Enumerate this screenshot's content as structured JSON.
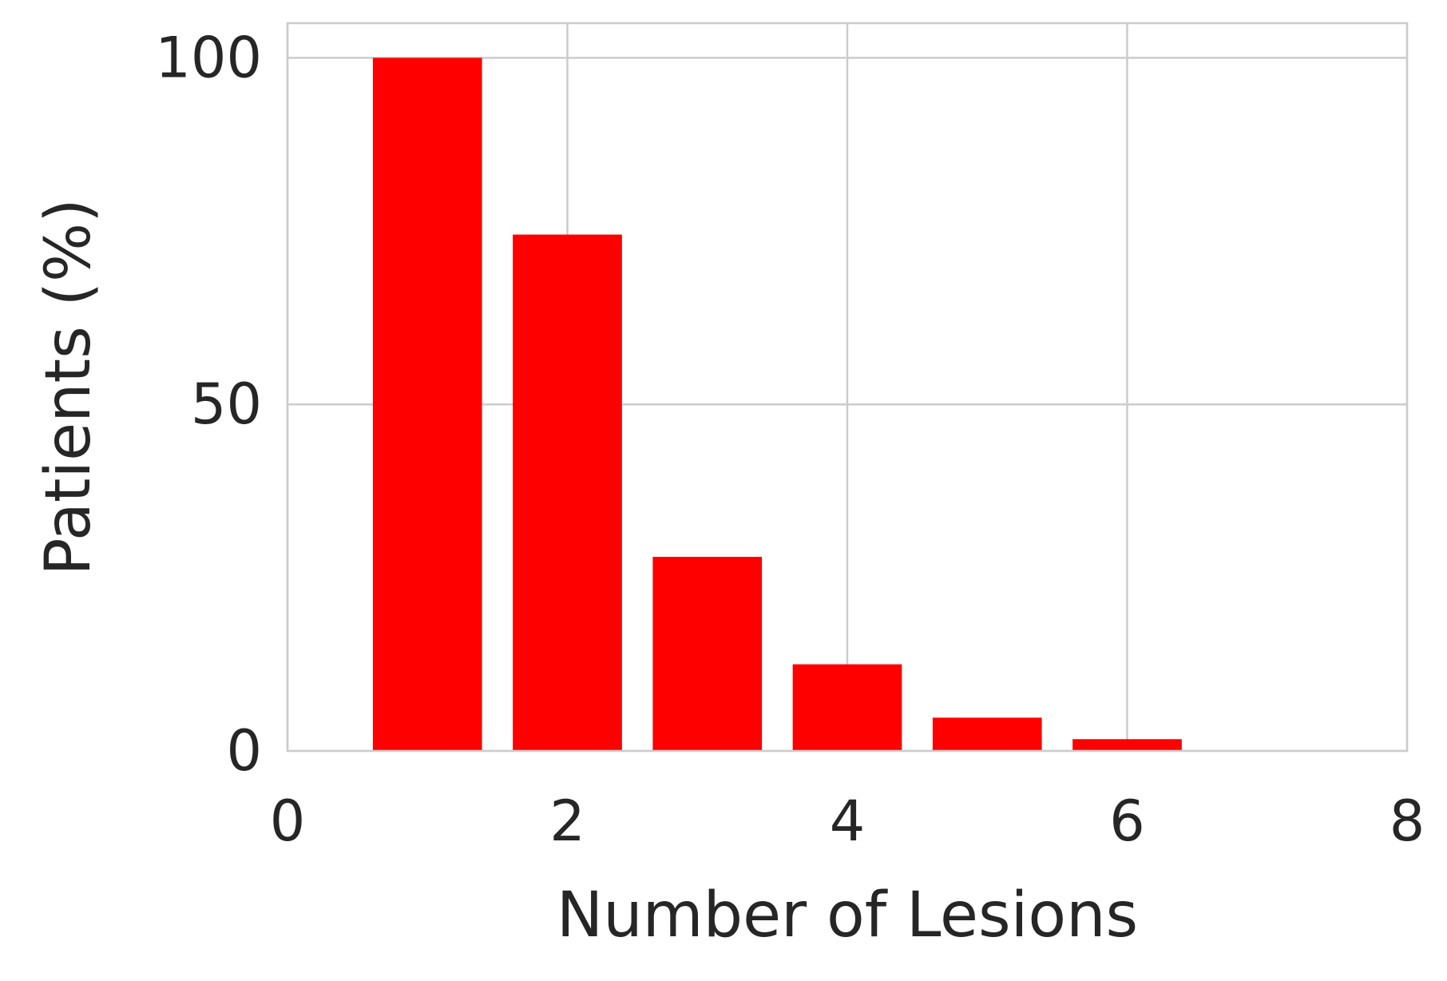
{
  "chart_data": {
    "type": "bar",
    "title": "",
    "xlabel": "Number of Lesions",
    "ylabel": "Patients (%)",
    "xlim": [
      0,
      8
    ],
    "ylim": [
      0,
      105
    ],
    "xticks": [
      0,
      2,
      4,
      6,
      8
    ],
    "yticks": [
      0,
      50,
      100
    ],
    "grid": true,
    "bar_color": "#ff0000",
    "bar_width": 0.78,
    "x": [
      1,
      2,
      3,
      4,
      5,
      6
    ],
    "values": [
      100,
      74.5,
      28,
      12.5,
      4.8,
      1.7
    ]
  }
}
